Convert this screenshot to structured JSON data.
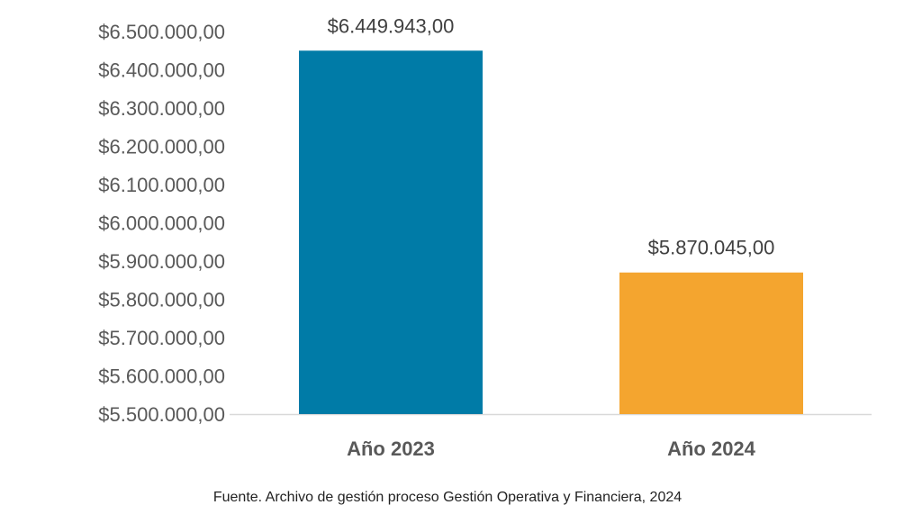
{
  "chart_data": {
    "type": "bar",
    "title": "",
    "xlabel": "",
    "ylabel": "",
    "categories": [
      "Año 2023",
      "Año 2024"
    ],
    "values": [
      6449943.0,
      5870045.0
    ],
    "data_labels": [
      "$6.449.943,00",
      "$5.870.045,00"
    ],
    "colors": [
      "#007BA7",
      "#F4A52F"
    ],
    "ylim": [
      5500000,
      6500000
    ],
    "yticks": [
      5500000,
      5600000,
      5700000,
      5800000,
      5900000,
      6000000,
      6100000,
      6200000,
      6300000,
      6400000,
      6500000
    ],
    "ytick_labels": [
      "$5.500.000,00",
      "$5.600.000,00",
      "$5.700.000,00",
      "$5.800.000,00",
      "$5.900.000,00",
      "$6.000.000,00",
      "$6.100.000,00",
      "$6.200.000,00",
      "$6.300.000,00",
      "$6.400.000,00",
      "$6.500.000,00"
    ],
    "grid": false,
    "legend": "none"
  },
  "source": "Fuente. Archivo de gestión proceso Gestión Operativa y Financiera, 2024"
}
